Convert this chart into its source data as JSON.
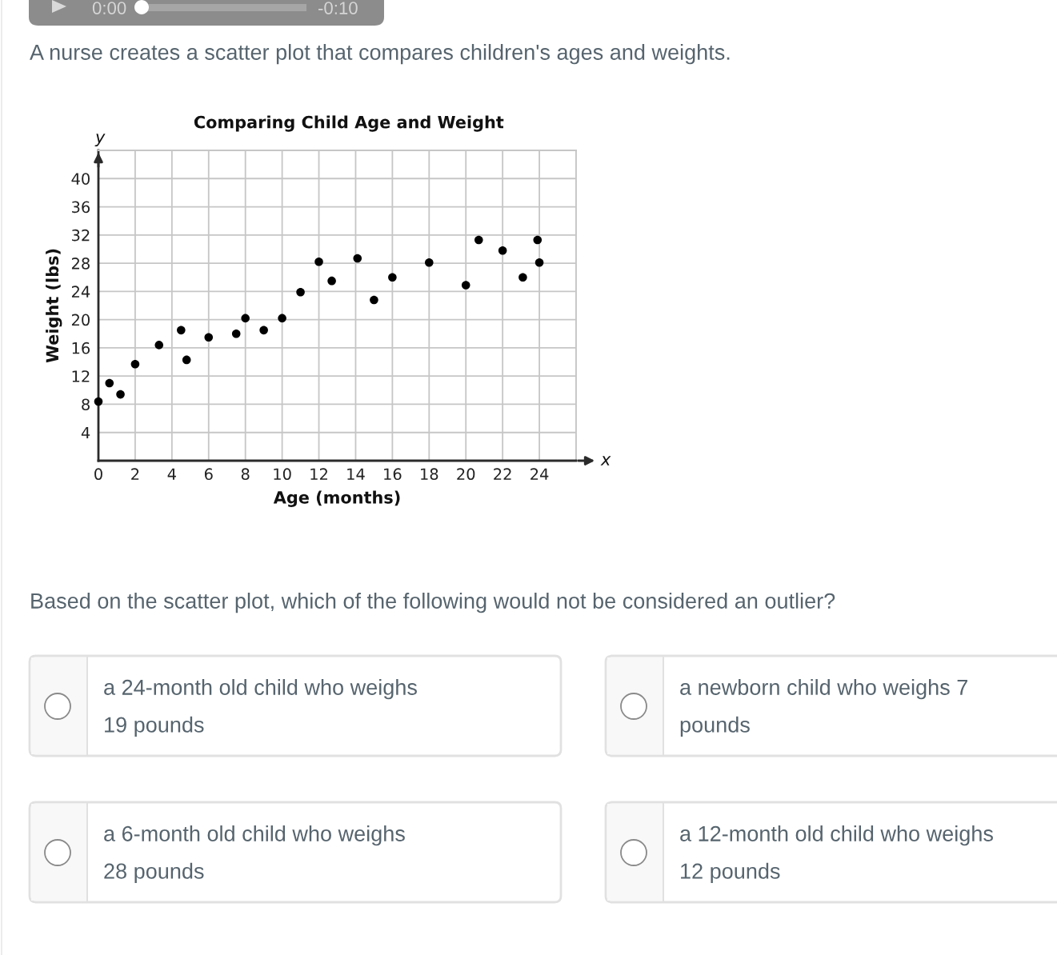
{
  "chart_data": {
    "type": "scatter",
    "title": "Comparing Child Age and Weight",
    "xlabel": "Age (months)",
    "ylabel": "Weight (lbs)",
    "x": [
      0,
      0.6,
      1.2,
      2,
      3.3,
      4.5,
      4.8,
      6,
      7.5,
      8,
      9,
      10,
      11,
      12,
      12.7,
      14.1,
      15,
      16,
      18,
      20,
      20.7,
      22,
      23.1,
      23.9,
      24
    ],
    "values": [
      8.4,
      11,
      9.4,
      13.7,
      16.4,
      18.5,
      14.3,
      17.5,
      18,
      20.2,
      18.5,
      20.2,
      23.9,
      28.2,
      25.5,
      28.7,
      22.8,
      26,
      28.1,
      24.9,
      31.3,
      29.8,
      26,
      31.3,
      28.1
    ],
    "color": "#000000",
    "marker": "circle",
    "xlim": [
      0,
      26
    ],
    "ylim": [
      0,
      44
    ],
    "xticks": [
      {
        "value": 0,
        "label": "0"
      },
      2,
      4,
      6,
      8,
      10,
      12,
      14,
      16,
      18,
      20,
      22,
      24,
      {
        "value": 26,
        "label": null
      }
    ],
    "yticks": [
      {
        "value": 0,
        "label": null
      },
      4,
      8,
      12,
      16,
      20,
      24,
      28,
      32,
      36,
      40,
      {
        "value": 44,
        "label": null
      }
    ],
    "grid": true,
    "annotations": [
      "A nurse creates a scatter plot that compares children's ages and weights.",
      "Based on the scatter plot, which of the following would not be considered an outlier?",
      "a 24-month old child who weighs 19 pounds",
      "a newborn child who weighs 7 pounds",
      "a 6-month old child who weighs 28 pounds",
      "a 12-month old child who weighs 12 pounds",
      "0:00",
      "-0:10",
      "x",
      "y"
    ]
  }
}
